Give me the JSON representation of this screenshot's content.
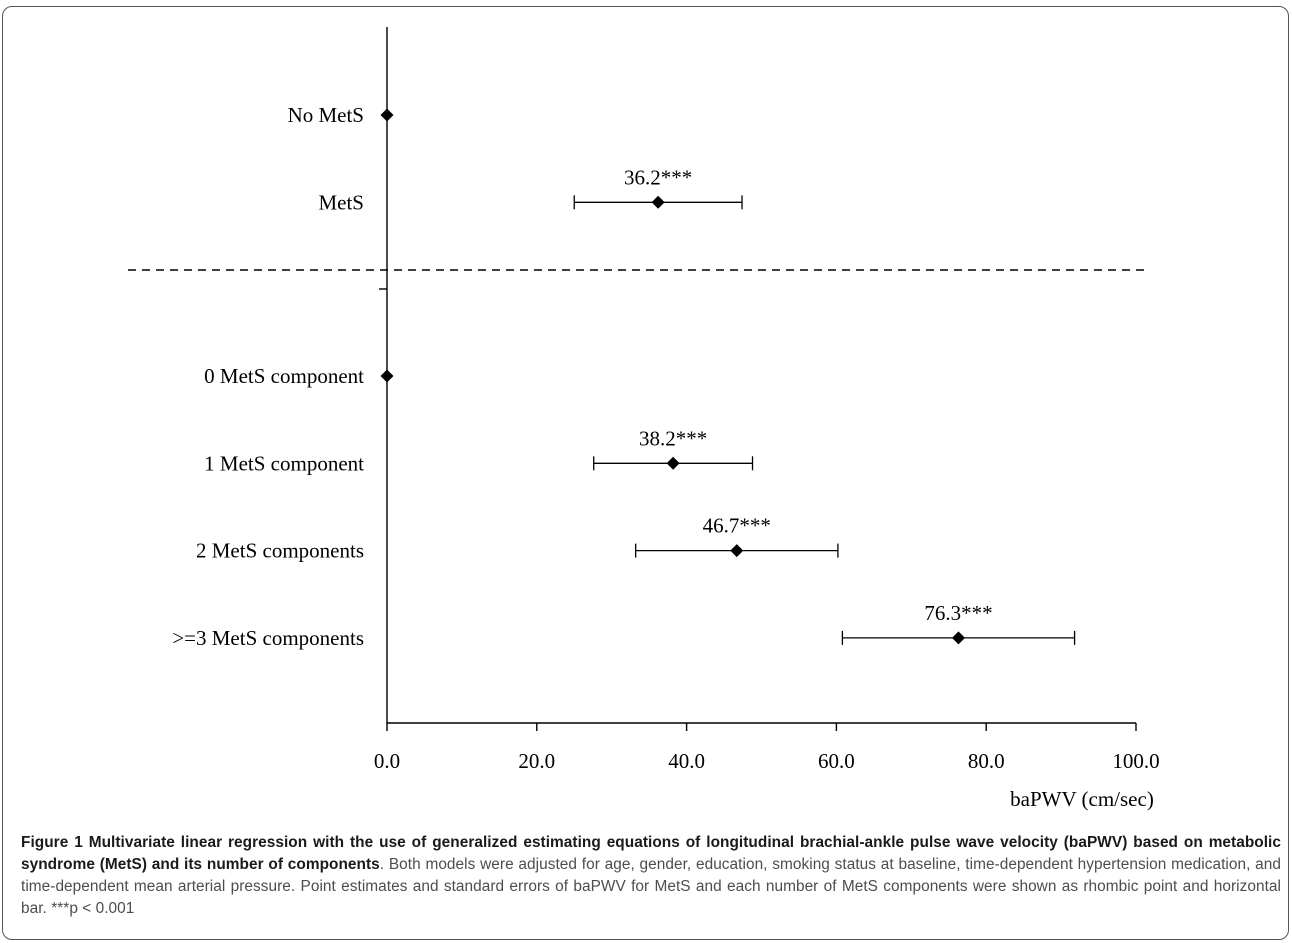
{
  "chart_data": {
    "type": "forest",
    "xlabel": "baPWV (cm/sec)",
    "xlim": [
      0,
      100
    ],
    "xticks": [
      0,
      20,
      40,
      60,
      80,
      100
    ],
    "xtick_labels": [
      "0.0",
      "20.0",
      "40.0",
      "60.0",
      "80.0",
      "100.0"
    ],
    "groups": [
      {
        "rows": [
          {
            "label": "No MetS",
            "estimate": 0,
            "lower": null,
            "upper": null,
            "annotation": ""
          },
          {
            "label": "MetS",
            "estimate": 36.2,
            "lower": 25.0,
            "upper": 47.4,
            "annotation": "36.2***"
          }
        ]
      },
      {
        "rows": [
          {
            "label": "0 MetS component",
            "estimate": 0,
            "lower": null,
            "upper": null,
            "annotation": ""
          },
          {
            "label": "1 MetS component",
            "estimate": 38.2,
            "lower": 27.6,
            "upper": 48.8,
            "annotation": "38.2***"
          },
          {
            "label": "2 MetS components",
            "estimate": 46.7,
            "lower": 33.2,
            "upper": 60.2,
            "annotation": "46.7***"
          },
          {
            "label": ">=3 MetS components",
            "estimate": 76.3,
            "lower": 60.8,
            "upper": 91.8,
            "annotation": "76.3***"
          }
        ]
      }
    ],
    "group_separator": "dashed"
  },
  "caption": {
    "lead": "Figure 1 Multivariate linear regression with the use of generalized estimating equations of longitudinal brachial-ankle pulse wave velocity (baPWV) based on metabolic syndrome (MetS) and its number of components",
    "body": ". Both models were adjusted for age, gender, education, smoking status at baseline, time-dependent hypertension medication, and time-dependent mean arterial pressure. Point estimates and standard errors of baPWV for MetS and each number of MetS components were shown as rhombic point and horizontal bar. ***p < 0.001"
  }
}
